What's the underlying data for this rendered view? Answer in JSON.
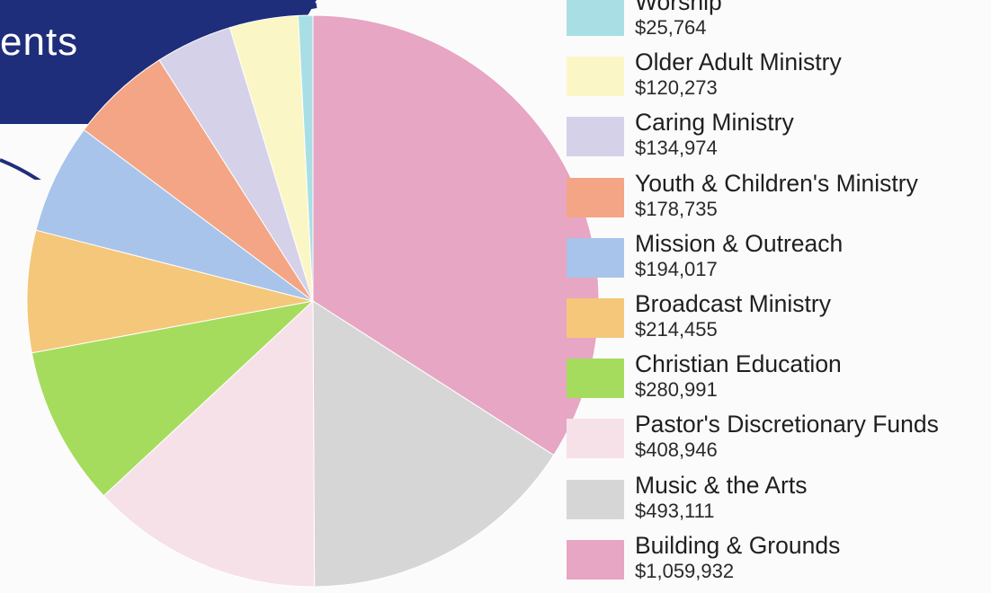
{
  "banner": {
    "text": "ents",
    "color": "#1f2e7a"
  },
  "chart_data": {
    "type": "pie",
    "title": "",
    "start_category": "Building & Grounds",
    "direction": "clockwise",
    "legend_position": "right",
    "slices": [
      {
        "label": "Building & Grounds",
        "display_value": "$1,059,932",
        "value": 1059932,
        "color": "#e7a6c3"
      },
      {
        "label": "Music & the Arts",
        "display_value": "$493,111",
        "value": 493111,
        "color": "#d6d6d6"
      },
      {
        "label": "Pastor's Discretionary Funds",
        "display_value": "$408,946",
        "value": 408946,
        "color": "#f7e1e8"
      },
      {
        "label": "Christian Education",
        "display_value": "$280,991",
        "value": 280991,
        "color": "#a6dc5e"
      },
      {
        "label": "Broadcast Ministry",
        "display_value": "$214,455",
        "value": 214455,
        "color": "#f5c77a"
      },
      {
        "label": "Mission & Outreach",
        "display_value": "$194,017",
        "value": 194017,
        "color": "#a8c4ea"
      },
      {
        "label": "Youth & Children's Ministry",
        "display_value": "$178,735",
        "value": 178735,
        "color": "#f3a585"
      },
      {
        "label": "Caring Ministry",
        "display_value": "$134,974",
        "value": 134974,
        "color": "#d5d1e9"
      },
      {
        "label": "Older Adult Ministry",
        "display_value": "$120,273",
        "value": 120273,
        "color": "#fbf6c6"
      },
      {
        "label": "Worship",
        "display_value": "$25,764",
        "value": 25764,
        "color": "#a9dfe4"
      }
    ],
    "legend_order": [
      "Worship",
      "Older Adult Ministry",
      "Caring Ministry",
      "Youth & Children's Ministry",
      "Mission & Outreach",
      "Broadcast Ministry",
      "Christian Education",
      "Pastor's Discretionary Funds",
      "Music & the Arts",
      "Building & Grounds"
    ]
  }
}
